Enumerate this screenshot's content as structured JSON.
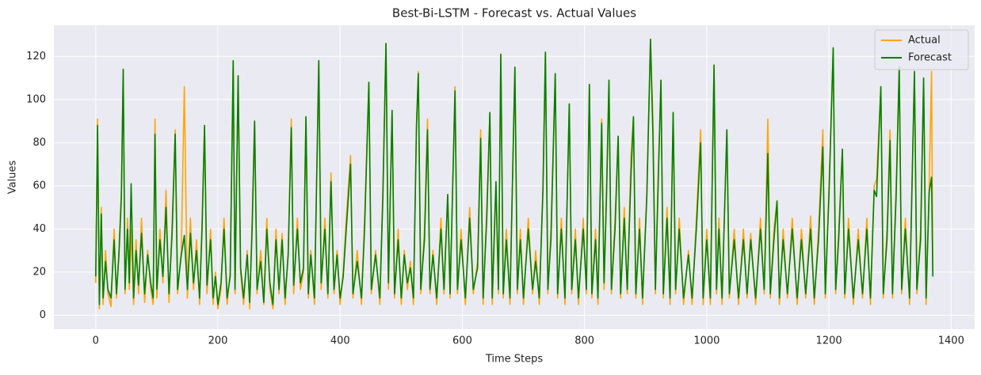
{
  "chart_data": {
    "type": "line",
    "title": "Best-Bi-LSTM - Forecast vs. Actual Values",
    "xlabel": "Time Steps",
    "ylabel": "Values",
    "x": [
      0,
      3,
      6,
      9,
      12,
      16,
      20,
      25,
      30,
      34,
      38,
      42,
      45,
      48,
      52,
      55,
      58,
      62,
      66,
      70,
      75,
      80,
      85,
      90,
      94,
      97,
      100,
      105,
      110,
      115,
      120,
      125,
      130,
      134,
      140,
      145,
      150,
      155,
      160,
      165,
      170,
      174,
      178,
      182,
      188,
      192,
      196,
      200,
      205,
      210,
      215,
      220,
      225,
      228,
      233,
      237,
      242,
      248,
      252,
      256,
      260,
      264,
      270,
      275,
      280,
      285,
      290,
      295,
      300,
      305,
      310,
      315,
      320,
      324,
      330,
      335,
      340,
      344,
      348,
      352,
      358,
      365,
      369,
      375,
      380,
      385,
      390,
      395,
      400,
      405,
      410,
      417,
      421,
      428,
      435,
      440,
      447,
      451,
      458,
      465,
      470,
      475,
      479,
      485,
      489,
      495,
      500,
      505,
      510,
      515,
      520,
      525,
      528,
      532,
      538,
      543,
      547,
      552,
      558,
      565,
      570,
      576,
      580,
      588,
      592,
      598,
      605,
      612,
      618,
      625,
      630,
      634,
      640,
      645,
      649,
      655,
      659,
      663,
      667,
      672,
      678,
      686,
      690,
      695,
      700,
      708,
      715,
      720,
      726,
      732,
      736,
      740,
      745,
      752,
      756,
      762,
      768,
      775,
      779,
      785,
      790,
      798,
      803,
      808,
      812,
      818,
      822,
      828,
      832,
      836,
      840,
      844,
      850,
      855,
      859,
      865,
      870,
      876,
      880,
      884,
      890,
      895,
      902,
      908,
      912,
      916,
      920,
      925,
      929,
      935,
      940,
      945,
      949,
      955,
      962,
      970,
      976,
      983,
      990,
      994,
      1000,
      1006,
      1012,
      1016,
      1020,
      1025,
      1033,
      1037,
      1045,
      1052,
      1060,
      1066,
      1072,
      1080,
      1088,
      1094,
      1100,
      1104,
      1110,
      1115,
      1119,
      1125,
      1132,
      1140,
      1148,
      1155,
      1162,
      1170,
      1176,
      1183,
      1190,
      1194,
      1200,
      1207,
      1211,
      1216,
      1222,
      1226,
      1232,
      1240,
      1248,
      1255,
      1262,
      1268,
      1274,
      1278,
      1285,
      1289,
      1295,
      1300,
      1304,
      1310,
      1315,
      1319,
      1325,
      1332,
      1340,
      1344,
      1350,
      1355,
      1359,
      1364,
      1368,
      1370
    ],
    "series": [
      {
        "name": "Actual",
        "color": "#ffa500",
        "values": [
          15,
          91,
          3,
          50,
          5,
          30,
          10,
          4,
          40,
          8,
          30,
          58,
          114,
          10,
          45,
          12,
          40,
          5,
          35,
          10,
          45,
          6,
          30,
          12,
          5,
          91,
          8,
          40,
          15,
          58,
          6,
          42,
          86,
          10,
          30,
          106,
          8,
          45,
          12,
          35,
          5,
          44,
          88,
          10,
          40,
          5,
          20,
          3,
          12,
          45,
          5,
          20,
          118,
          10,
          111,
          20,
          5,
          30,
          3,
          45,
          90,
          10,
          30,
          5,
          45,
          12,
          3,
          40,
          10,
          38,
          5,
          30,
          91,
          10,
          45,
          12,
          20,
          92,
          8,
          30,
          5,
          118,
          12,
          45,
          8,
          66,
          10,
          30,
          5,
          20,
          45,
          74,
          8,
          30,
          5,
          45,
          108,
          10,
          30,
          5,
          59,
          126,
          12,
          95,
          8,
          40,
          5,
          30,
          12,
          25,
          5,
          88,
          113,
          10,
          40,
          91,
          10,
          30,
          5,
          45,
          10,
          56,
          8,
          106,
          10,
          40,
          5,
          50,
          10,
          25,
          86,
          5,
          50,
          94,
          5,
          60,
          10,
          121,
          8,
          40,
          5,
          115,
          10,
          40,
          5,
          45,
          10,
          30,
          5,
          60,
          122,
          10,
          40,
          112,
          8,
          45,
          5,
          98,
          10,
          40,
          5,
          45,
          10,
          107,
          8,
          40,
          5,
          91,
          12,
          60,
          109,
          10,
          45,
          83,
          8,
          50,
          10,
          74,
          92,
          8,
          45,
          5,
          58,
          128,
          91,
          10,
          60,
          109,
          8,
          50,
          5,
          94,
          10,
          45,
          5,
          30,
          5,
          45,
          86,
          5,
          40,
          5,
          116,
          10,
          45,
          5,
          86,
          8,
          40,
          5,
          40,
          8,
          38,
          5,
          45,
          10,
          91,
          8,
          40,
          53,
          5,
          40,
          8,
          45,
          5,
          40,
          8,
          46,
          5,
          40,
          86,
          8,
          59,
          124,
          10,
          40,
          77,
          8,
          45,
          5,
          40,
          8,
          45,
          5,
          60,
          63,
          106,
          8,
          40,
          86,
          8,
          60,
          115,
          10,
          45,
          5,
          113,
          10,
          40,
          110,
          5,
          60,
          113,
          20
        ]
      },
      {
        "name": "Forecast",
        "color": "#008000",
        "values": [
          18,
          88,
          5,
          47,
          8,
          25,
          12,
          8,
          35,
          10,
          28,
          55,
          114,
          12,
          40,
          15,
          61,
          8,
          30,
          14,
          38,
          10,
          28,
          15,
          8,
          84,
          12,
          35,
          18,
          50,
          10,
          38,
          84,
          12,
          28,
          37,
          12,
          38,
          15,
          30,
          8,
          40,
          88,
          14,
          35,
          8,
          18,
          5,
          15,
          40,
          8,
          18,
          118,
          12,
          111,
          22,
          8,
          28,
          6,
          40,
          90,
          12,
          25,
          6,
          40,
          15,
          5,
          35,
          12,
          35,
          8,
          28,
          87,
          14,
          40,
          15,
          22,
          92,
          10,
          28,
          8,
          118,
          15,
          40,
          10,
          62,
          12,
          28,
          8,
          18,
          40,
          70,
          10,
          25,
          8,
          40,
          108,
          12,
          28,
          8,
          55,
          126,
          15,
          95,
          10,
          35,
          8,
          28,
          15,
          22,
          8,
          88,
          112,
          12,
          35,
          86,
          12,
          28,
          8,
          40,
          12,
          56,
          10,
          104,
          12,
          35,
          8,
          45,
          12,
          22,
          82,
          8,
          45,
          94,
          8,
          62,
          12,
          121,
          10,
          35,
          8,
          115,
          12,
          35,
          8,
          40,
          12,
          25,
          8,
          58,
          122,
          12,
          35,
          112,
          10,
          40,
          8,
          98,
          12,
          35,
          8,
          40,
          12,
          107,
          10,
          35,
          8,
          89,
          15,
          55,
          109,
          12,
          40,
          83,
          10,
          45,
          12,
          65,
          92,
          10,
          40,
          8,
          55,
          128,
          83,
          12,
          55,
          109,
          10,
          45,
          8,
          94,
          12,
          40,
          8,
          28,
          8,
          40,
          80,
          8,
          35,
          8,
          116,
          12,
          40,
          8,
          86,
          10,
          35,
          8,
          35,
          10,
          35,
          8,
          40,
          12,
          75,
          10,
          35,
          53,
          8,
          35,
          10,
          40,
          8,
          35,
          10,
          40,
          8,
          35,
          78,
          10,
          55,
          124,
          12,
          35,
          77,
          10,
          40,
          8,
          35,
          10,
          40,
          8,
          58,
          55,
          106,
          10,
          35,
          81,
          10,
          55,
          115,
          12,
          40,
          8,
          113,
          12,
          35,
          110,
          8,
          57,
          64,
          18
        ]
      }
    ],
    "xlim": [
      -68.5,
      1438.5
    ],
    "xticks": [
      0,
      200,
      400,
      600,
      800,
      1000,
      1200,
      1400
    ],
    "ylim": [
      -6.4,
      134.4
    ],
    "yticks": [
      0,
      20,
      40,
      60,
      80,
      100,
      120
    ],
    "grid": true,
    "legend": "upper right"
  }
}
